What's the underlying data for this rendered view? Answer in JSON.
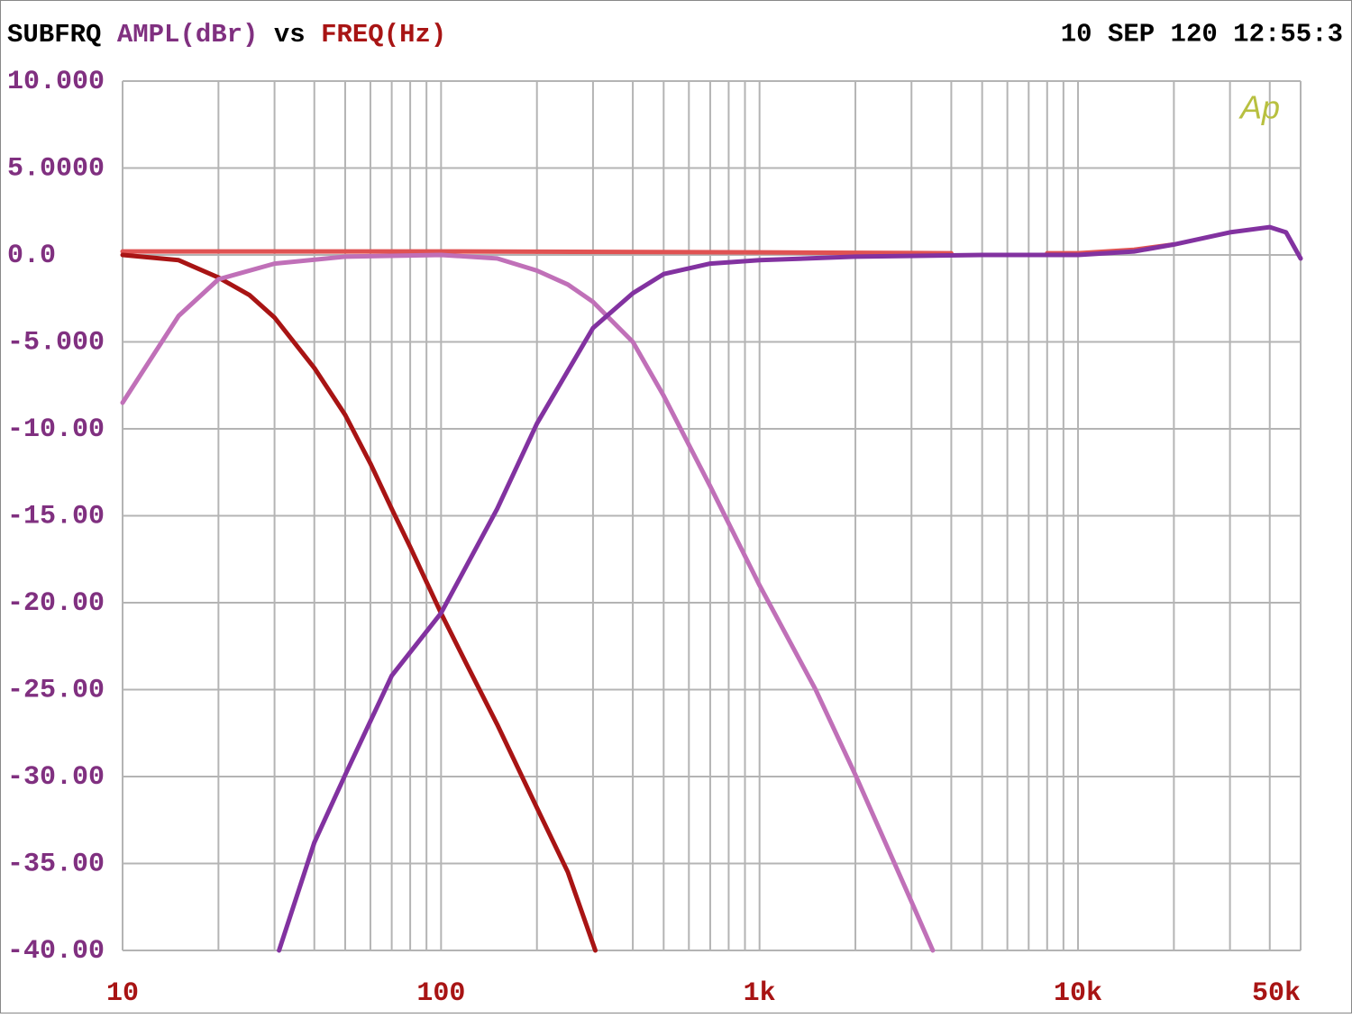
{
  "chart_data": {
    "type": "line",
    "title": "SUBFRQ",
    "ylabel": "AMPL(dBr)",
    "connector": "vs",
    "xlabel": "FREQ(Hz)",
    "timestamp": "10 SEP 120 12:55:3",
    "logo": "Ap",
    "xscale": "log",
    "grid": true,
    "xlim": [
      10,
      50000
    ],
    "ylim": [
      -40,
      10
    ],
    "xticks": [
      10,
      100,
      {
        "value": 1000,
        "label": "1k"
      },
      {
        "value": 10000,
        "label": "10k"
      },
      {
        "value": 50000,
        "label": "50k"
      }
    ],
    "yticks": [
      {
        "value": 10,
        "label": "10.000"
      },
      {
        "value": 5,
        "label": "5.0000"
      },
      {
        "value": 0,
        "label": "0.0"
      },
      {
        "value": -5,
        "label": "-5.000"
      },
      {
        "value": -10,
        "label": "-10.00"
      },
      {
        "value": -15,
        "label": "-15.00"
      },
      {
        "value": -20,
        "label": "-20.00"
      },
      {
        "value": -25,
        "label": "-25.00"
      },
      {
        "value": -30,
        "label": "-30.00"
      },
      {
        "value": -35,
        "label": "-35.00"
      },
      {
        "value": -40,
        "label": "-40.00"
      }
    ],
    "series": [
      {
        "color": "#e05252",
        "x": [
          10,
          100,
          1000,
          4000,
          6000,
          8000,
          10000,
          15000,
          20000
        ],
        "values": [
          0.2,
          0.2,
          0.15,
          0.1,
          null,
          0.1,
          0.1,
          0.3,
          0.6
        ]
      },
      {
        "color": "#a81414",
        "x": [
          10,
          15,
          20,
          25,
          30,
          40,
          50,
          60,
          70,
          80,
          100,
          120,
          150,
          200,
          250,
          305
        ],
        "values": [
          0,
          -0.3,
          -1.3,
          -2.3,
          -3.6,
          -6.5,
          -9.2,
          -12,
          -14.6,
          -16.8,
          -20.6,
          -23.5,
          -27,
          -31.8,
          -35.5,
          -40
        ]
      },
      {
        "color": "#c070b8",
        "x": [
          10,
          15,
          20,
          30,
          50,
          100,
          150,
          200,
          250,
          300,
          400,
          500,
          700,
          1000,
          1500,
          2000,
          3000,
          3500
        ],
        "values": [
          -8.5,
          -3.5,
          -1.4,
          -0.5,
          -0.1,
          0,
          -0.2,
          -0.9,
          -1.7,
          -2.7,
          -5,
          -8.1,
          -13.3,
          -19,
          -25,
          -29.9,
          -37.2,
          -40
        ]
      },
      {
        "color": "#8232a0",
        "x": [
          31,
          40,
          50,
          70,
          100,
          150,
          200,
          300,
          400,
          500,
          700,
          1000,
          2000,
          5000,
          10000,
          15000,
          20000,
          30000,
          40000,
          45000,
          50000
        ],
        "values": [
          -40,
          -33.8,
          -29.9,
          -24.2,
          -20.6,
          -14.6,
          -9.7,
          -4.2,
          -2.2,
          -1.1,
          -0.5,
          -0.3,
          -0.1,
          0,
          0,
          0.2,
          0.6,
          1.3,
          1.6,
          1.3,
          -0.2
        ]
      }
    ],
    "ytick_color": "#803080",
    "xtick_color": "#a81414",
    "logo_color": "#b8c040"
  }
}
